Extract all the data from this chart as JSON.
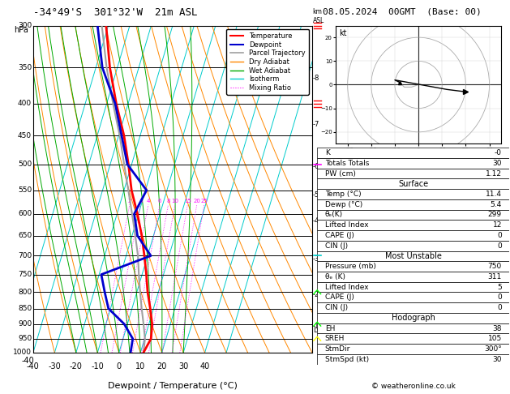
{
  "title_left": "-34°49'S  301°32'W  21m ASL",
  "title_right": "08.05.2024  00GMT  (Base: 00)",
  "xlabel": "Dewpoint / Temperature (°C)",
  "pressure_levels": [
    300,
    350,
    400,
    450,
    500,
    550,
    600,
    650,
    700,
    750,
    800,
    850,
    900,
    950,
    1000
  ],
  "T_min": -40,
  "T_max": 45,
  "p_min": 300,
  "p_max": 1000,
  "skew": 45,
  "temperature_profile_p": [
    1000,
    950,
    900,
    850,
    800,
    750,
    700,
    650,
    600,
    550,
    500,
    450,
    400,
    350,
    300
  ],
  "temperature_profile_T": [
    11.4,
    13.0,
    11.5,
    8.5,
    5.0,
    2.0,
    -1.5,
    -5.5,
    -10.5,
    -16.5,
    -21.5,
    -27.5,
    -35.5,
    -43.5,
    -51.0
  ],
  "dewpoint_profile_p": [
    1000,
    950,
    900,
    850,
    800,
    750,
    700,
    650,
    600,
    550,
    500,
    400,
    350,
    300
  ],
  "dewpoint_profile_T": [
    5.4,
    4.5,
    -1.5,
    -11.0,
    -15.0,
    -19.0,
    1.5,
    -7.5,
    -12.0,
    -9.5,
    -22.0,
    -36.0,
    -47.0,
    -55.0
  ],
  "parcel_profile_p": [
    1000,
    950,
    900,
    850,
    800,
    750,
    700,
    650,
    600,
    550,
    500,
    450,
    400,
    350,
    300
  ],
  "parcel_profile_T": [
    11.4,
    10.2,
    7.5,
    4.5,
    1.5,
    -1.5,
    -4.5,
    -8.5,
    -13.0,
    -18.0,
    -23.5,
    -29.5,
    -37.0,
    -45.0,
    -53.0
  ],
  "lcl_pressure": 920,
  "mixing_ratios": [
    2,
    3,
    4,
    6,
    8,
    10,
    15,
    20,
    25
  ],
  "dry_adiabat_thetas": [
    -30,
    -20,
    -10,
    0,
    10,
    20,
    30,
    40,
    50,
    60,
    70,
    80,
    90,
    100,
    110,
    120
  ],
  "wet_adiabat_starts": [
    -20,
    -15,
    -10,
    -5,
    0,
    5,
    10,
    15,
    20,
    25,
    30
  ],
  "isotherm_temps": [
    -50,
    -40,
    -30,
    -20,
    -10,
    0,
    10,
    20,
    30,
    40,
    50
  ],
  "km_ticks_km": [
    1,
    2,
    3,
    4,
    5,
    6,
    7,
    8
  ],
  "km_ticks_pressure": [
    908,
    808,
    708,
    616,
    559,
    504,
    432,
    364
  ],
  "color_temp": "#ff0000",
  "color_dewp": "#0000cd",
  "color_parcel": "#a0a0a0",
  "color_dry_adiabat": "#ff8800",
  "color_wet_adiabat": "#00aa00",
  "color_isotherm": "#00cccc",
  "color_mixing": "#ff00ff",
  "info_K": "-0",
  "info_TT": "30",
  "info_PW": "1.12",
  "info_surf_temp": "11.4",
  "info_surf_dewp": "5.4",
  "info_surf_theta_e": "299",
  "info_surf_LI": "12",
  "info_surf_CAPE": "0",
  "info_surf_CIN": "0",
  "info_mu_pres": "750",
  "info_mu_theta_e": "311",
  "info_mu_LI": "5",
  "info_mu_CAPE": "0",
  "info_mu_CIN": "0",
  "info_EH": "38",
  "info_SREH": "105",
  "info_StmDir": "300°",
  "info_StmSpd": "30",
  "wind_colors_pressures": [
    300,
    400,
    500,
    700,
    800,
    900,
    950
  ],
  "wind_colors_colors": [
    "red",
    "red",
    "magenta",
    "cyan",
    "lime",
    "lime",
    "yellow"
  ],
  "wind_marker_types": [
    "barb3",
    "barb2",
    "arrow1",
    "arrow_cyan",
    "zigzag",
    "zigzag",
    "zigzag2"
  ]
}
